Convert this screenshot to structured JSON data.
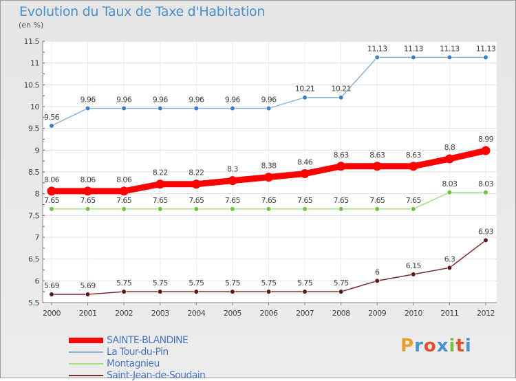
{
  "title": "Evolution du Taux de Taxe d'Habitation",
  "subtitle": "(en %)",
  "chart_data": {
    "type": "line",
    "title": "Evolution du Taux de Taxe d'Habitation",
    "ylabel": "(en %)",
    "xlabel": "",
    "x": [
      "2000",
      "2001",
      "2002",
      "2003",
      "2004",
      "2005",
      "2006",
      "2007",
      "2008",
      "2009",
      "2010",
      "2011",
      "2012"
    ],
    "ylim": [
      5.5,
      11.5
    ],
    "yticks": [
      "5.5",
      "6",
      "6.5",
      "7",
      "7.5",
      "8",
      "8.5",
      "9",
      "9.5",
      "10",
      "10.5",
      "11",
      "11.5"
    ],
    "grid": true,
    "legend_position": "bottom-left",
    "series": [
      {
        "name": "SAINTE-BLANDINE",
        "color": "#ff0000",
        "emphasis": true,
        "values": [
          8.06,
          8.06,
          8.06,
          8.22,
          8.22,
          8.3,
          8.38,
          8.46,
          8.63,
          8.63,
          8.63,
          8.8,
          8.99
        ],
        "labels": [
          "8.06",
          "8.06",
          "8.06",
          "8.22",
          "8.22",
          "8.3",
          "8.38",
          "8.46",
          "8.63",
          "8.63",
          "8.63",
          "8.8",
          "8.99"
        ]
      },
      {
        "name": "La Tour-du-Pin",
        "color": "#8ab4d9",
        "marker_color": "#3a7fc4",
        "values": [
          9.56,
          9.96,
          9.96,
          9.96,
          9.96,
          9.96,
          9.96,
          10.21,
          10.21,
          11.13,
          11.13,
          11.13,
          11.13
        ],
        "labels": [
          "9.56",
          "9.96",
          "9.96",
          "9.96",
          "9.96",
          "9.96",
          "9.96",
          "10.21",
          "10.21",
          "11.13",
          "11.13",
          "11.13",
          "11.13"
        ]
      },
      {
        "name": "Montagnieu",
        "color": "#a8e088",
        "marker_color": "#6fc23d",
        "values": [
          7.65,
          7.65,
          7.65,
          7.65,
          7.65,
          7.65,
          7.65,
          7.65,
          7.65,
          7.65,
          7.65,
          8.03,
          8.03
        ],
        "labels": [
          "7.65",
          "7.65",
          "7.65",
          "7.65",
          "7.65",
          "7.65",
          "7.65",
          "7.65",
          "7.65",
          "7.65",
          "7.65",
          "8.03",
          "8.03"
        ]
      },
      {
        "name": "Saint-Jean-de-Soudain",
        "color": "#7a2a2a",
        "marker_color": "#5a1a1a",
        "values": [
          5.69,
          5.69,
          5.75,
          5.75,
          5.75,
          5.75,
          5.75,
          5.75,
          5.75,
          6,
          6.15,
          6.3,
          6.93
        ],
        "labels": [
          "5.69",
          "5.69",
          "5.75",
          "5.75",
          "5.75",
          "5.75",
          "5.75",
          "5.75",
          "5.75",
          "6",
          "6.15",
          "6.3",
          "6.93"
        ]
      }
    ]
  },
  "logo": {
    "text": "Proxiti",
    "letters": [
      "P",
      "r",
      "o",
      "x",
      "i",
      "t",
      "i"
    ],
    "colors": [
      "#e8a030",
      "#4a90d0",
      "#e05030",
      "#4a90d0",
      "#7cc040",
      "#e05030",
      "#4a90d0"
    ]
  }
}
